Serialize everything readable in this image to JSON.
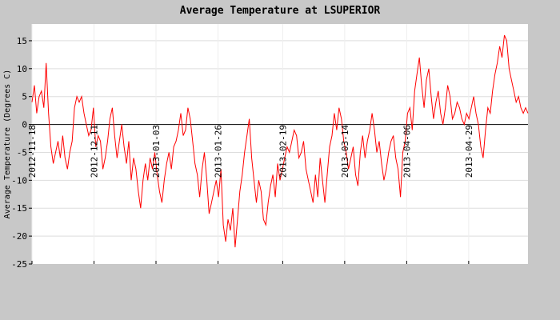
{
  "chart_data": {
    "type": "line",
    "title": "Average Temperature at LSUPERIOR",
    "ylabel": "Average Temperature (Degrees C)",
    "xlabel": "",
    "ylim": [
      -25,
      18
    ],
    "yticks": [
      -25,
      -20,
      -15,
      -10,
      -5,
      0,
      5,
      10,
      15
    ],
    "x_start": "2012-11-18",
    "x_end": "2013-05-21",
    "x_ticks": [
      "2012-11-18",
      "2012-12-11",
      "2013-01-03",
      "2013-01-26",
      "2013-02-19",
      "2013-03-14",
      "2013-04-06",
      "2013-04-29"
    ],
    "grid": true,
    "zero_line": true,
    "series": [
      {
        "color": "#ff0000",
        "values": [
          4,
          7,
          2,
          5,
          6,
          3,
          11,
          2,
          -4,
          -7,
          -5,
          -3,
          -6,
          -2,
          -6,
          -8,
          -5,
          -3,
          3,
          5,
          4,
          5,
          2,
          0,
          -2,
          -1,
          3,
          -4,
          -2,
          -3,
          -8,
          -6,
          -3,
          1,
          3,
          -2,
          -6,
          -3,
          0,
          -4,
          -7,
          -3,
          -10,
          -6,
          -8,
          -12,
          -15,
          -10,
          -7,
          -10,
          -6,
          -8,
          -5,
          -9,
          -12,
          -14,
          -10,
          -7,
          -5,
          -8,
          -4,
          -3,
          -1,
          2,
          -2,
          -1,
          3,
          1,
          -3,
          -7,
          -9,
          -13,
          -8,
          -5,
          -10,
          -16,
          -14,
          -12,
          -10,
          -13,
          -8,
          -18,
          -21,
          -17,
          -19,
          -15,
          -22,
          -17,
          -12,
          -9,
          -5,
          -2,
          1,
          -6,
          -10,
          -14,
          -10,
          -12,
          -17,
          -18,
          -14,
          -11,
          -9,
          -13,
          -7,
          -10,
          -8,
          -6,
          -4,
          -5,
          -3,
          -1,
          -2,
          -6,
          -5,
          -3,
          -8,
          -10,
          -12,
          -14,
          -9,
          -13,
          -6,
          -10,
          -14,
          -9,
          -4,
          -2,
          2,
          -1,
          3,
          1,
          -3,
          -5,
          -8,
          -6,
          -4,
          -9,
          -11,
          -5,
          -2,
          -6,
          -3,
          -1,
          2,
          -1,
          -5,
          -3,
          -7,
          -10,
          -8,
          -5,
          -3,
          -2,
          -6,
          -8,
          -13,
          -5,
          -3,
          2,
          3,
          -1,
          6,
          9,
          12,
          7,
          3,
          8,
          10,
          5,
          1,
          4,
          6,
          2,
          0,
          3,
          7,
          5,
          1,
          2,
          4,
          3,
          1,
          0,
          2,
          1,
          3,
          5,
          2,
          0,
          -4,
          -6,
          -1,
          3,
          2,
          6,
          9,
          11,
          14,
          12,
          16,
          15,
          10,
          8,
          6,
          4,
          5,
          3,
          2,
          3,
          2
        ]
      }
    ]
  }
}
